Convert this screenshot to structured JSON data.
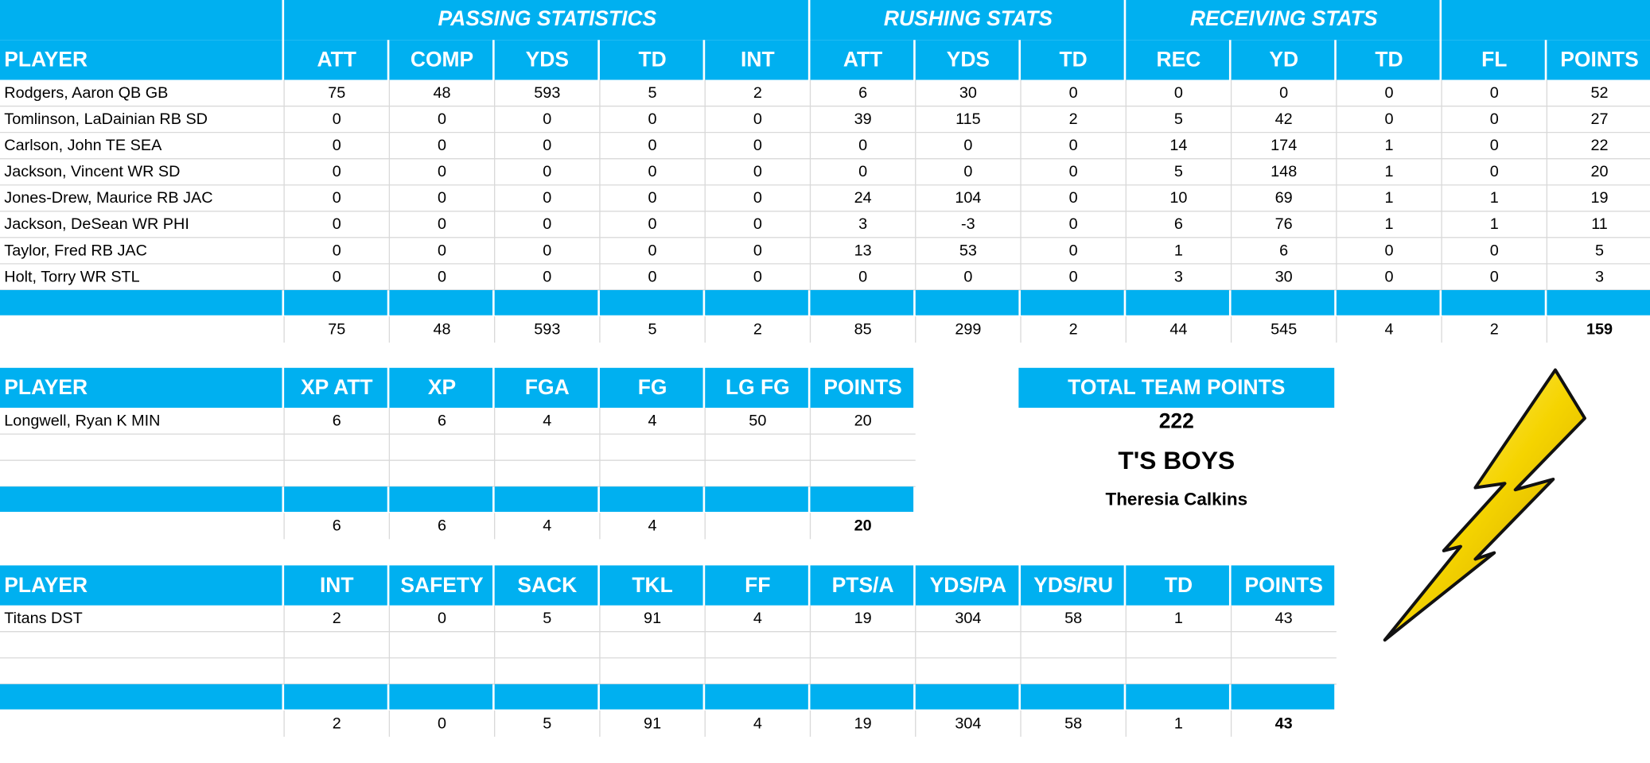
{
  "passing_table": {
    "group_headers": [
      "PASSING STATISTICS",
      "RUSHING STATS",
      "RECEIVING STATS"
    ],
    "columns": [
      "PLAYER",
      "ATT",
      "COMP",
      "YDS",
      "TD",
      "INT",
      "ATT",
      "YDS",
      "TD",
      "REC",
      "YD",
      "TD",
      "FL",
      "POINTS"
    ],
    "rows": [
      [
        "Rodgers, Aaron QB GB",
        75,
        48,
        593,
        5,
        2,
        6,
        30,
        0,
        0,
        0,
        0,
        0,
        52
      ],
      [
        "Tomlinson, LaDainian RB SD",
        0,
        0,
        0,
        0,
        0,
        39,
        115,
        2,
        5,
        42,
        0,
        0,
        27
      ],
      [
        "Carlson, John TE SEA",
        0,
        0,
        0,
        0,
        0,
        0,
        0,
        0,
        14,
        174,
        1,
        0,
        22
      ],
      [
        "Jackson, Vincent WR SD",
        0,
        0,
        0,
        0,
        0,
        0,
        0,
        0,
        5,
        148,
        1,
        0,
        20
      ],
      [
        "Jones-Drew, Maurice RB JAC",
        0,
        0,
        0,
        0,
        0,
        24,
        104,
        0,
        10,
        69,
        1,
        1,
        19
      ],
      [
        "Jackson, DeSean WR PHI",
        0,
        0,
        0,
        0,
        0,
        3,
        -3,
        0,
        6,
        76,
        1,
        1,
        11
      ],
      [
        "Taylor, Fred RB JAC",
        0,
        0,
        0,
        0,
        0,
        13,
        53,
        0,
        1,
        6,
        0,
        0,
        5
      ],
      [
        "Holt, Torry WR STL",
        0,
        0,
        0,
        0,
        0,
        0,
        0,
        0,
        3,
        30,
        0,
        0,
        3
      ]
    ],
    "totals": [
      75,
      48,
      593,
      5,
      2,
      85,
      299,
      2,
      44,
      545,
      4,
      2,
      159
    ]
  },
  "kicker_table": {
    "columns": [
      "PLAYER",
      "XP ATT",
      "XP",
      "FGA",
      "FG",
      "LG FG",
      "POINTS"
    ],
    "rows": [
      [
        "Longwell, Ryan K MIN",
        6,
        6,
        4,
        4,
        50,
        20
      ]
    ],
    "totals": [
      6,
      6,
      4,
      4,
      null,
      20
    ]
  },
  "team_box": {
    "header": "TOTAL TEAM POINTS",
    "points": 222,
    "team_name": "T'S BOYS",
    "owner": "Theresia Calkins"
  },
  "defense_table": {
    "columns": [
      "PLAYER",
      "INT",
      "SAFETY",
      "SACK",
      "TKL",
      "FF",
      "PTS/A",
      "YDS/PA",
      "YDS/RU",
      "TD",
      "POINTS"
    ],
    "rows": [
      [
        "Titans DST",
        2,
        0,
        5,
        91,
        4,
        19,
        304,
        58,
        1,
        43
      ]
    ],
    "totals": [
      2,
      0,
      5,
      91,
      4,
      19,
      304,
      58,
      1,
      43
    ]
  }
}
